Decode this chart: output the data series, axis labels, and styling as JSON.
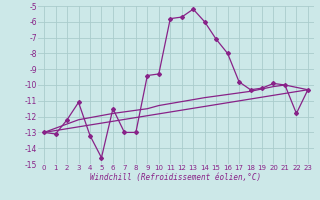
{
  "xlabel": "Windchill (Refroidissement éolien,°C)",
  "background_color": "#cce8e8",
  "grid_color": "#aacccc",
  "line_color": "#882288",
  "ylim": [
    -15.0,
    -5.0
  ],
  "xlim": [
    -0.5,
    23.5
  ],
  "yticks": [
    -15,
    -14,
    -13,
    -12,
    -11,
    -10,
    -9,
    -8,
    -7,
    -6,
    -5
  ],
  "xticks": [
    0,
    1,
    2,
    3,
    4,
    5,
    6,
    7,
    8,
    9,
    10,
    11,
    12,
    13,
    14,
    15,
    16,
    17,
    18,
    19,
    20,
    21,
    22,
    23
  ],
  "line1_x": [
    0,
    1,
    2,
    3,
    4,
    5,
    6,
    7,
    8,
    9,
    10,
    11,
    12,
    13,
    14,
    15,
    16,
    17,
    18,
    19,
    20,
    21,
    22,
    23
  ],
  "line1_y": [
    -13.0,
    -13.1,
    -12.2,
    -11.1,
    -13.2,
    -14.6,
    -11.5,
    -13.0,
    -13.0,
    -9.4,
    -9.3,
    -5.8,
    -5.7,
    -5.2,
    -6.0,
    -7.1,
    -8.0,
    -9.8,
    -10.3,
    -10.2,
    -9.9,
    -10.0,
    -11.8,
    -10.3
  ],
  "line2_x": [
    0,
    23
  ],
  "line2_y": [
    -13.0,
    -10.3
  ],
  "line3_x": [
    0,
    3,
    6,
    9,
    10,
    14,
    16,
    18,
    20,
    21,
    22,
    23
  ],
  "line3_y": [
    -13.0,
    -12.2,
    -11.8,
    -11.5,
    -11.3,
    -10.8,
    -10.6,
    -10.4,
    -10.1,
    -10.0,
    -10.15,
    -10.3
  ]
}
